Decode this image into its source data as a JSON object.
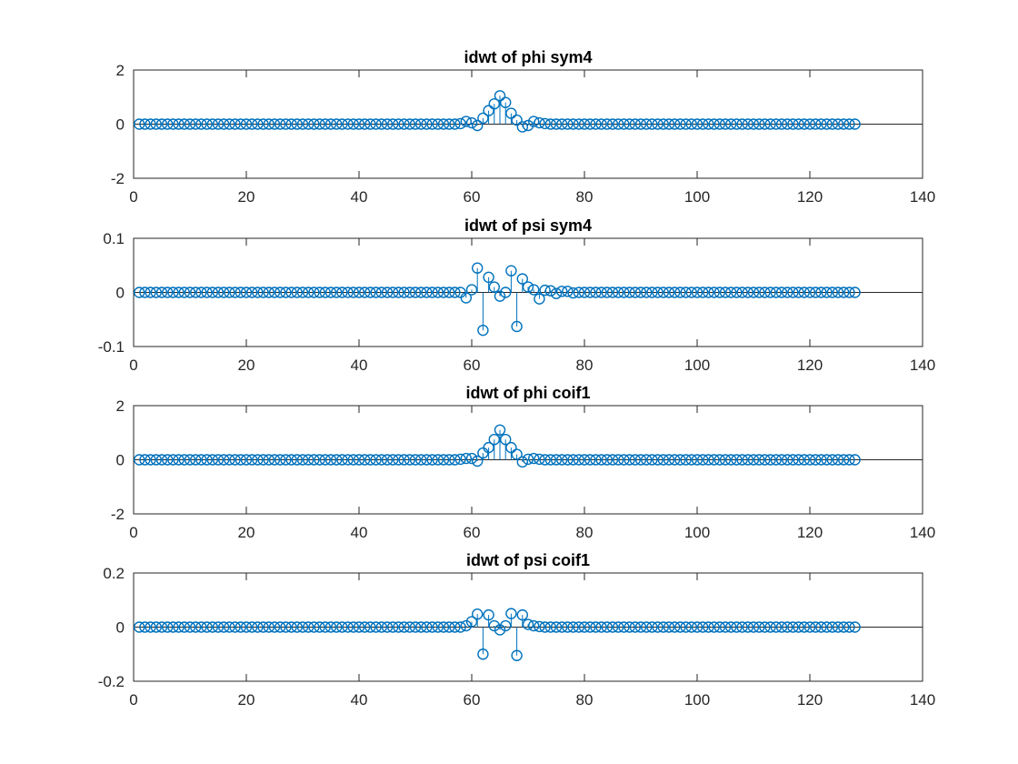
{
  "colors": {
    "series": "#0072BD",
    "axes": "#262626",
    "background": "#ffffff"
  },
  "chart_data": [
    {
      "type": "stem",
      "title": "idwt of phi sym4",
      "xlabel": "",
      "ylabel": "",
      "xlim": [
        0,
        140
      ],
      "ylim": [
        -2,
        2
      ],
      "xticks": [
        0,
        20,
        40,
        60,
        80,
        100,
        120,
        140
      ],
      "yticks": [
        -2,
        0,
        2
      ],
      "xtick_labels": [
        "0",
        "20",
        "40",
        "60",
        "80",
        "100",
        "120",
        "140"
      ],
      "ytick_labels": [
        "-2",
        "0",
        "2"
      ],
      "grid": false,
      "x_range": [
        1,
        128
      ],
      "nonzero": {
        "58": 0.02,
        "59": 0.1,
        "60": 0.05,
        "61": -0.05,
        "62": 0.22,
        "63": 0.5,
        "64": 0.75,
        "65": 1.05,
        "66": 0.8,
        "67": 0.4,
        "68": 0.15,
        "69": -0.1,
        "70": -0.05,
        "71": 0.1,
        "72": 0.05,
        "73": 0.02
      }
    },
    {
      "type": "stem",
      "title": "idwt of psi sym4",
      "xlabel": "",
      "ylabel": "",
      "xlim": [
        0,
        140
      ],
      "ylim": [
        -0.1,
        0.1
      ],
      "xticks": [
        0,
        20,
        40,
        60,
        80,
        100,
        120,
        140
      ],
      "yticks": [
        -0.1,
        0,
        0.1
      ],
      "xtick_labels": [
        "0",
        "20",
        "40",
        "60",
        "80",
        "100",
        "120",
        "140"
      ],
      "ytick_labels": [
        "-0.1",
        "0",
        "0.1"
      ],
      "grid": false,
      "x_range": [
        1,
        128
      ],
      "nonzero": {
        "59": -0.01,
        "60": 0.005,
        "61": 0.045,
        "62": -0.07,
        "63": 0.028,
        "64": 0.01,
        "65": -0.007,
        "66": 0.0,
        "67": 0.04,
        "68": -0.063,
        "69": 0.025,
        "70": 0.01,
        "71": 0.005,
        "72": -0.012,
        "73": 0.004,
        "74": 0.003,
        "75": -0.002,
        "76": 0.002,
        "77": 0.002,
        "78": -0.001
      }
    },
    {
      "type": "stem",
      "title": "idwt of phi coif1",
      "xlabel": "",
      "ylabel": "",
      "xlim": [
        0,
        140
      ],
      "ylim": [
        -2,
        2
      ],
      "xticks": [
        0,
        20,
        40,
        60,
        80,
        100,
        120,
        140
      ],
      "yticks": [
        -2,
        0,
        2
      ],
      "xtick_labels": [
        "0",
        "20",
        "40",
        "60",
        "80",
        "100",
        "120",
        "140"
      ],
      "ytick_labels": [
        "-2",
        "0",
        "2"
      ],
      "grid": false,
      "x_range": [
        1,
        128
      ],
      "nonzero": {
        "58": 0.02,
        "59": 0.05,
        "60": 0.05,
        "61": -0.05,
        "62": 0.25,
        "63": 0.45,
        "64": 0.75,
        "65": 1.1,
        "66": 0.75,
        "67": 0.45,
        "68": 0.2,
        "69": -0.08,
        "70": 0.02,
        "71": 0.05,
        "72": 0.02
      }
    },
    {
      "type": "stem",
      "title": "idwt of psi coif1",
      "xlabel": "",
      "ylabel": "",
      "xlim": [
        0,
        140
      ],
      "ylim": [
        -0.2,
        0.2
      ],
      "xticks": [
        0,
        20,
        40,
        60,
        80,
        100,
        120,
        140
      ],
      "yticks": [
        -0.2,
        -0.0,
        0.2
      ],
      "xtick_labels": [
        "0",
        "20",
        "40",
        "60",
        "80",
        "100",
        "120",
        "140"
      ],
      "ytick_labels": [
        "-0.2",
        "0",
        "0.2"
      ],
      "grid": false,
      "x_range": [
        1,
        128
      ],
      "nonzero": {
        "59": 0.005,
        "60": 0.02,
        "61": 0.048,
        "62": -0.1,
        "63": 0.045,
        "64": 0.005,
        "65": -0.01,
        "66": 0.005,
        "67": 0.05,
        "68": -0.105,
        "69": 0.045,
        "70": 0.01,
        "71": 0.005,
        "72": 0.002
      }
    }
  ]
}
